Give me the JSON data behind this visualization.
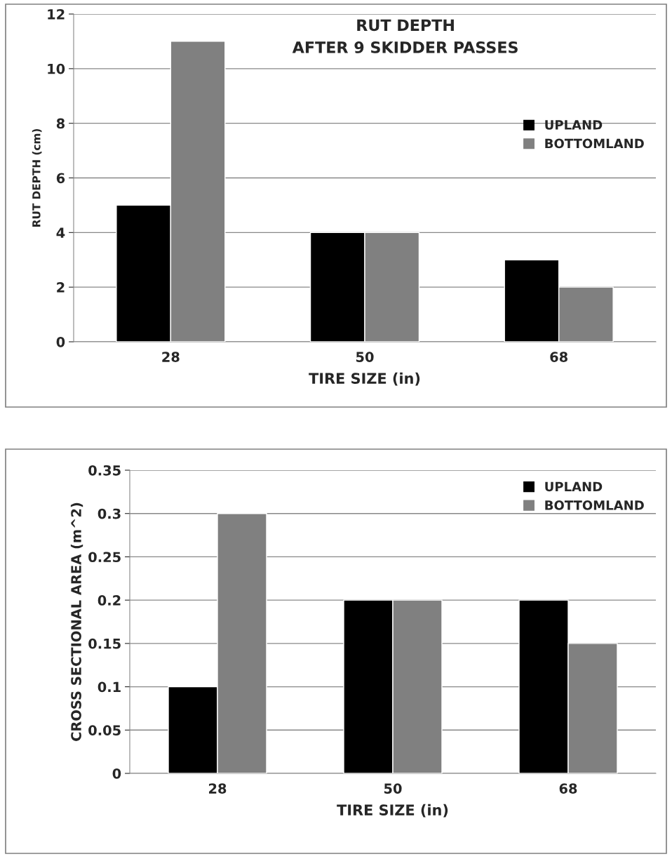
{
  "chart_data": [
    {
      "type": "bar",
      "title": "RUT DEPTH\nAFTER 9 SKIDDER PASSES",
      "xlabel": "TIRE SIZE (in)",
      "ylabel": "RUT DEPTH (cm)",
      "categories": [
        "28",
        "50",
        "68"
      ],
      "series": [
        {
          "name": "UPLAND",
          "color": "#000000",
          "values": [
            5,
            4,
            3
          ]
        },
        {
          "name": "BOTTOMLAND",
          "color": "#808080",
          "values": [
            11,
            4,
            2
          ]
        }
      ],
      "ylim": [
        0,
        12
      ],
      "yticks": [
        0,
        2,
        4,
        6,
        8,
        10,
        12
      ],
      "grid": "y",
      "legend": "right"
    },
    {
      "type": "bar",
      "xlabel": "TIRE SIZE (in)",
      "ylabel": "CROSS SECTIONAL AREA (m^2)",
      "categories": [
        "28",
        "50",
        "68"
      ],
      "series": [
        {
          "name": "UPLAND",
          "color": "#000000",
          "values": [
            0.1,
            0.2,
            0.2
          ]
        },
        {
          "name": "BOTTOMLAND",
          "color": "#808080",
          "values": [
            0.3,
            0.2,
            0.15
          ]
        }
      ],
      "ylim": [
        0,
        0.35
      ],
      "yticks": [
        0,
        0.05,
        0.1,
        0.15,
        0.2,
        0.25,
        0.3,
        0.35
      ],
      "grid": "y",
      "legend": "top right"
    }
  ]
}
